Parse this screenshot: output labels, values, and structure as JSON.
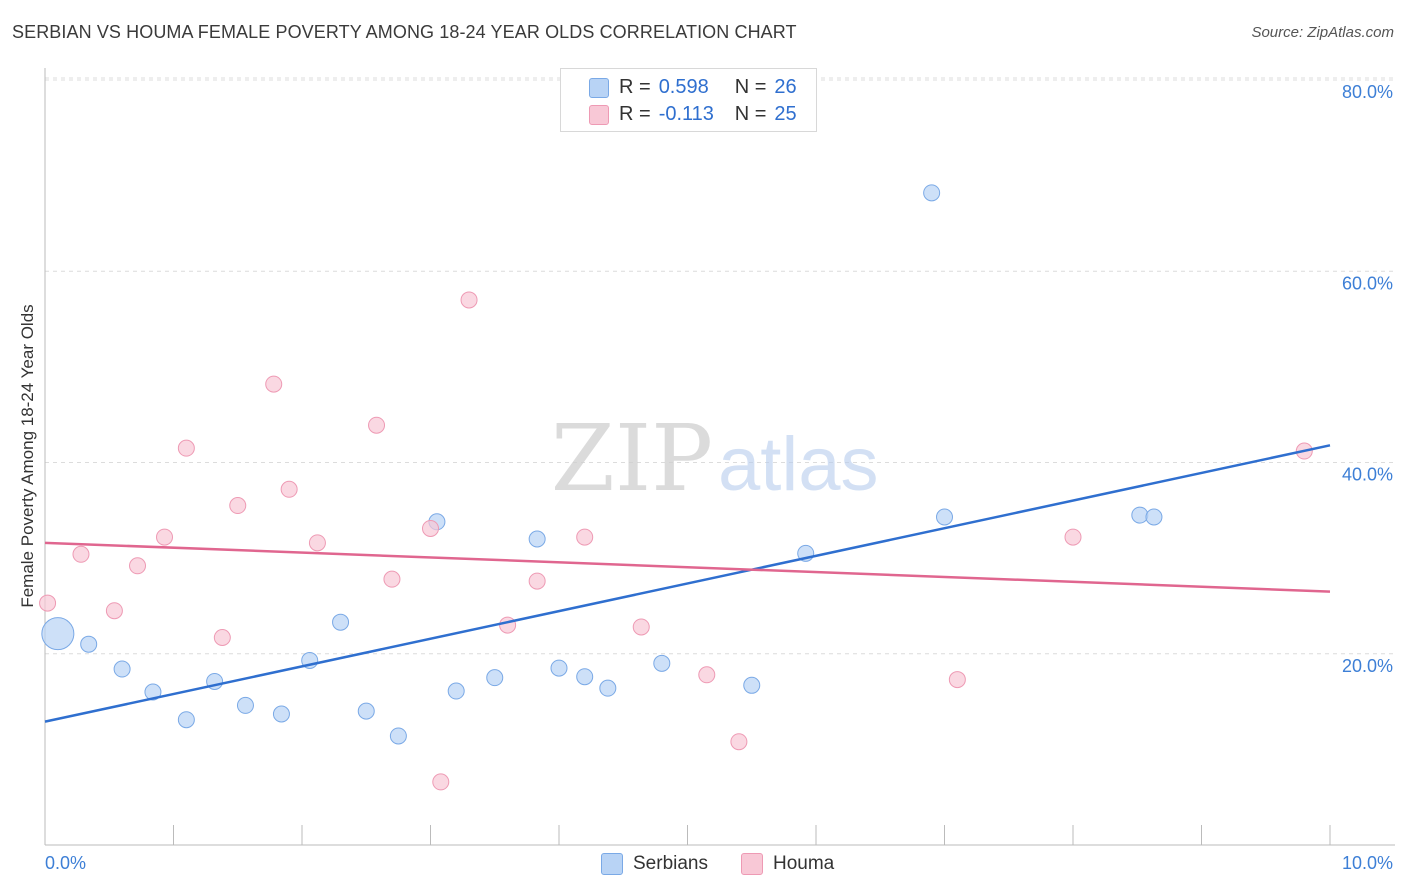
{
  "header": {
    "title": "SERBIAN VS HOUMA FEMALE POVERTY AMONG 18-24 YEAR OLDS CORRELATION CHART",
    "source": "Source: ZipAtlas.com"
  },
  "legend": {
    "rows": [
      {
        "r_label": "R =",
        "r_value": "0.598",
        "n_label": "N =",
        "n_value": "26"
      },
      {
        "r_label": "R =",
        "r_value": "-0.113",
        "n_label": "N =",
        "n_value": "25"
      }
    ]
  },
  "watermark": {
    "zip": "ZIP",
    "atlas": "atlas"
  },
  "colors": {
    "serbians_fill": "#b8d3f5",
    "serbians_stroke": "#7aa9e6",
    "serbians_line": "#2f6fcf",
    "houma_fill": "#f8c8d6",
    "houma_stroke": "#ee9ab4",
    "houma_line": "#e0668f",
    "axis_text": "#3d7fd6",
    "grid": "#dcdcdc"
  },
  "chart_data": {
    "type": "scatter",
    "title": "SERBIAN VS HOUMA FEMALE POVERTY AMONG 18-24 YEAR OLDS CORRELATION CHART",
    "xlabel": "",
    "ylabel": "Female Poverty Among 18-24 Year Olds",
    "xlim": [
      0,
      10
    ],
    "ylim": [
      0,
      80
    ],
    "x_tick_labels": [
      "0.0%",
      "10.0%"
    ],
    "y_ticks": [
      20,
      40,
      60,
      80
    ],
    "y_tick_labels": [
      "20.0%",
      "40.0%",
      "60.0%",
      "80.0%"
    ],
    "grid": true,
    "legend_placement": "bottom-center",
    "series": [
      {
        "name": "Serbians",
        "color": "#b8d3f5",
        "trend": {
          "x": [
            0,
            10
          ],
          "y": [
            12.9,
            41.8
          ]
        },
        "points": [
          {
            "x": 0.1,
            "y": 22.1,
            "big": true
          },
          {
            "x": 0.34,
            "y": 21.0
          },
          {
            "x": 0.6,
            "y": 18.4
          },
          {
            "x": 0.84,
            "y": 16.0
          },
          {
            "x": 1.1,
            "y": 13.1
          },
          {
            "x": 1.32,
            "y": 17.1
          },
          {
            "x": 1.56,
            "y": 14.6
          },
          {
            "x": 1.84,
            "y": 13.7
          },
          {
            "x": 2.06,
            "y": 19.3
          },
          {
            "x": 2.3,
            "y": 23.3
          },
          {
            "x": 2.5,
            "y": 14.0
          },
          {
            "x": 2.75,
            "y": 11.4
          },
          {
            "x": 3.05,
            "y": 33.8
          },
          {
            "x": 3.2,
            "y": 16.1
          },
          {
            "x": 3.5,
            "y": 17.5
          },
          {
            "x": 3.83,
            "y": 32.0
          },
          {
            "x": 4.0,
            "y": 18.5
          },
          {
            "x": 4.2,
            "y": 17.6
          },
          {
            "x": 4.38,
            "y": 16.4
          },
          {
            "x": 4.8,
            "y": 19.0
          },
          {
            "x": 5.5,
            "y": 16.7
          },
          {
            "x": 5.92,
            "y": 30.5
          },
          {
            "x": 6.9,
            "y": 68.2
          },
          {
            "x": 7.0,
            "y": 34.3
          },
          {
            "x": 8.52,
            "y": 34.5
          },
          {
            "x": 8.63,
            "y": 34.3
          }
        ]
      },
      {
        "name": "Houma",
        "color": "#f8c8d6",
        "trend": {
          "x": [
            0,
            10
          ],
          "y": [
            31.6,
            26.5
          ]
        },
        "points": [
          {
            "x": 0.02,
            "y": 25.3
          },
          {
            "x": 0.28,
            "y": 30.4
          },
          {
            "x": 0.54,
            "y": 24.5
          },
          {
            "x": 0.72,
            "y": 29.2
          },
          {
            "x": 0.93,
            "y": 32.2
          },
          {
            "x": 1.1,
            "y": 41.5
          },
          {
            "x": 1.38,
            "y": 21.7
          },
          {
            "x": 1.5,
            "y": 35.5
          },
          {
            "x": 1.78,
            "y": 48.2
          },
          {
            "x": 1.9,
            "y": 37.2
          },
          {
            "x": 2.12,
            "y": 31.6
          },
          {
            "x": 2.58,
            "y": 43.9
          },
          {
            "x": 2.7,
            "y": 27.8
          },
          {
            "x": 3.0,
            "y": 33.1
          },
          {
            "x": 3.08,
            "y": 6.6
          },
          {
            "x": 3.3,
            "y": 57.0
          },
          {
            "x": 3.6,
            "y": 23.0
          },
          {
            "x": 3.83,
            "y": 27.6
          },
          {
            "x": 4.2,
            "y": 32.2
          },
          {
            "x": 4.64,
            "y": 22.8
          },
          {
            "x": 5.15,
            "y": 17.8
          },
          {
            "x": 5.4,
            "y": 10.8
          },
          {
            "x": 7.1,
            "y": 17.3
          },
          {
            "x": 8.0,
            "y": 32.2
          },
          {
            "x": 9.8,
            "y": 41.2
          }
        ]
      }
    ]
  }
}
